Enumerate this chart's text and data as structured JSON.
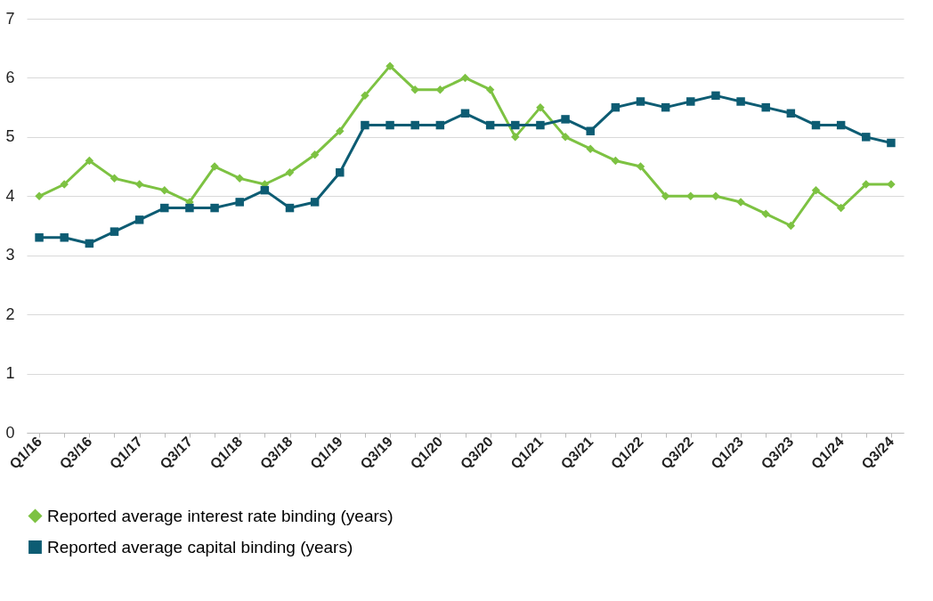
{
  "chart_data": {
    "type": "line",
    "categories": [
      "Q1/16",
      null,
      "Q3/16",
      null,
      "Q1/17",
      null,
      "Q3/17",
      null,
      "Q1/18",
      null,
      "Q3/18",
      null,
      "Q1/19",
      null,
      "Q3/19",
      null,
      "Q1/20",
      null,
      "Q3/20",
      null,
      "Q1/21",
      null,
      "Q3/21",
      null,
      "Q1/22",
      null,
      "Q3/22",
      null,
      "Q1/23",
      null,
      "Q3/23",
      null,
      "Q1/24",
      null,
      "Q3/24"
    ],
    "series": [
      {
        "name": "Reported average interest rate binding (years)",
        "color": "#7dc242",
        "marker": "diamond",
        "values": [
          4.0,
          4.2,
          4.6,
          4.3,
          4.2,
          4.1,
          3.9,
          4.5,
          4.3,
          4.2,
          4.4,
          4.7,
          5.1,
          5.7,
          6.2,
          5.8,
          5.8,
          6.0,
          5.8,
          5.0,
          5.5,
          5.0,
          4.8,
          4.6,
          4.5,
          4.0,
          4.0,
          4.0,
          3.9,
          3.7,
          3.5,
          4.1,
          3.8,
          4.2,
          4.2
        ]
      },
      {
        "name": "Reported average capital binding (years)",
        "color": "#0d5c73",
        "marker": "square",
        "values": [
          3.3,
          3.3,
          3.2,
          3.4,
          3.6,
          3.8,
          3.8,
          3.8,
          3.9,
          4.1,
          3.8,
          3.9,
          4.4,
          5.2,
          5.2,
          5.2,
          5.2,
          5.4,
          5.2,
          5.2,
          5.2,
          5.3,
          5.1,
          5.5,
          5.6,
          5.5,
          5.6,
          5.7,
          5.6,
          5.5,
          5.4,
          5.2,
          5.2,
          5.0,
          4.9
        ]
      }
    ],
    "ylim": [
      0,
      7
    ],
    "yticks": [
      0,
      1,
      2,
      3,
      4,
      5,
      6,
      7
    ],
    "grid": "y",
    "legend": "bottom"
  }
}
